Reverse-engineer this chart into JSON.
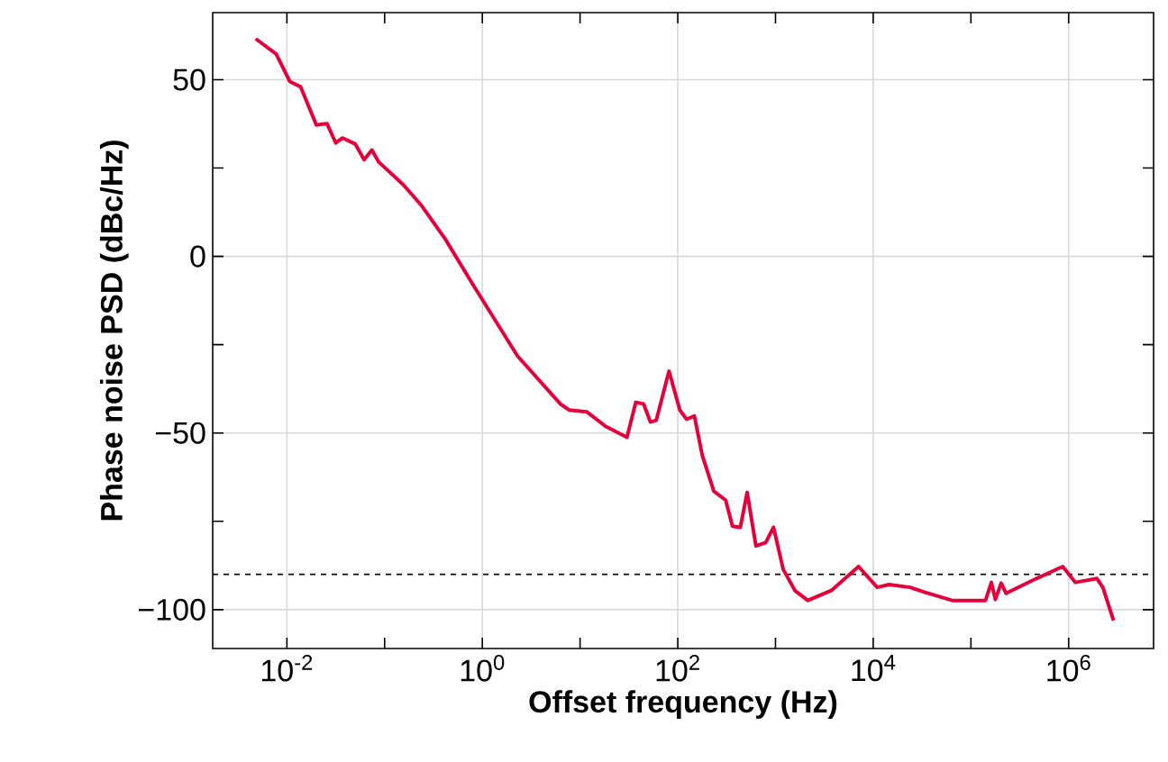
{
  "chart_data": {
    "type": "line",
    "xlabel": "Offset frequency (Hz)",
    "ylabel": "Phase noise PSD (dBc/Hz)",
    "log": "x",
    "grid": true,
    "xlim": [
      0.00174,
      7400000
    ],
    "ylim": [
      -111,
      69
    ],
    "xticks": [
      {
        "value": 0.01,
        "label": "10$^{-2}$"
      },
      {
        "value": 0.1,
        "label": null
      },
      {
        "value": 1,
        "label": "10$^{0}$"
      },
      {
        "value": 10,
        "label": null
      },
      {
        "value": 100,
        "label": "10$^{2}$"
      },
      {
        "value": 1000,
        "label": null
      },
      {
        "value": 10000,
        "label": "10$^{4}$"
      },
      {
        "value": 100000,
        "label": null
      },
      {
        "value": 1000000,
        "label": "10$^{6}$"
      }
    ],
    "yticks": [
      {
        "value": -100,
        "label": "−100"
      },
      {
        "value": -75,
        "label": null
      },
      {
        "value": -50,
        "label": "−50"
      },
      {
        "value": -25,
        "label": null
      },
      0,
      {
        "value": 25,
        "label": null
      },
      50
    ],
    "ref_lines": [
      {
        "axis": "y",
        "value": -90,
        "color": "#000000",
        "line_style": "dashed"
      }
    ],
    "series": [
      {
        "color": "#e4003b",
        "x": [
          0.00479,
          0.00776,
          0.0107,
          0.0138,
          0.02,
          0.0257,
          0.0316,
          0.0372,
          0.0501,
          0.0617,
          0.0741,
          0.0871,
          0.155,
          0.24,
          0.417,
          0.794,
          2.29,
          6.31,
          7.76,
          11.7,
          18.2,
          30.2,
          37.2,
          44.7,
          52.5,
          60.3,
          81.3,
          105,
          123,
          148,
          178,
          234,
          309,
          363,
          437,
          513,
          631,
          794,
          955,
          1200,
          1580,
          2140,
          3720,
          7080,
          11000,
          14500,
          24000,
          33900,
          64600,
          141000,
          162000,
          178000,
          204000,
          229000,
          468000,
          871000,
          1170000,
          1950000,
          2240000,
          2880000
        ],
        "values": [
          61.6,
          57.3,
          49.5,
          48,
          37.2,
          37.6,
          32.1,
          33.5,
          31.8,
          27.4,
          30.1,
          26.7,
          20.3,
          14.3,
          4.9,
          -7.8,
          -28.2,
          -41.8,
          -43.5,
          -44,
          -48.1,
          -51.2,
          -41.3,
          -41.8,
          -46.9,
          -46.4,
          -32.5,
          -43.5,
          -46.1,
          -45.2,
          -56.3,
          -66.5,
          -69,
          -76.4,
          -76.7,
          -66.8,
          -82,
          -81,
          -76.7,
          -88.6,
          -94.6,
          -97.4,
          -94.6,
          -87.8,
          -93.7,
          -92.9,
          -93.7,
          -95.1,
          -97.4,
          -97.4,
          -92.3,
          -97.1,
          -92.5,
          -95.4,
          -91.2,
          -87.8,
          -92.3,
          -91.2,
          -93.7,
          -103.1
        ]
      }
    ]
  }
}
